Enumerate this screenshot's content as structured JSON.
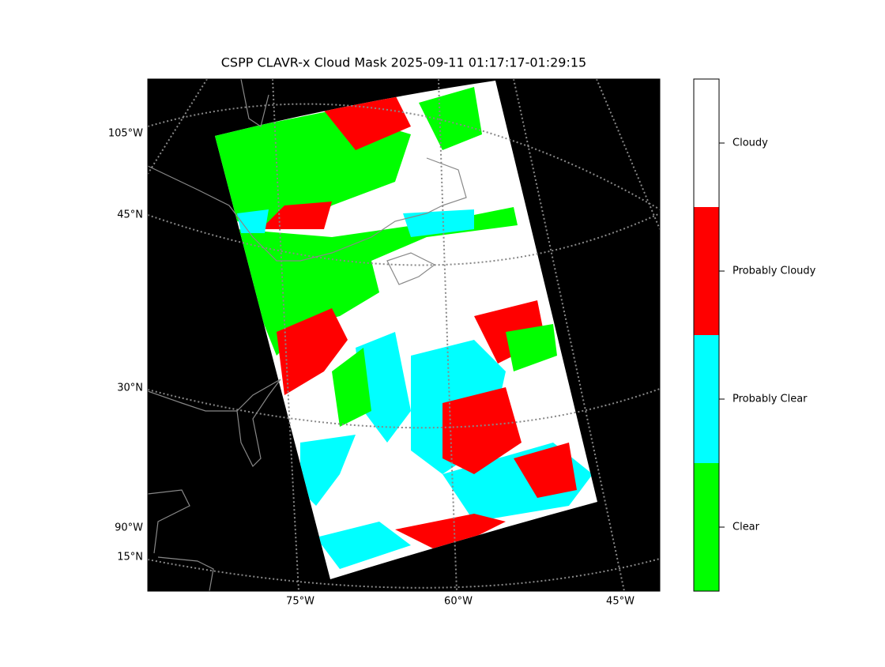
{
  "title": "CSPP CLAVR-x Cloud Mask 2025-09-11 01:17:17-01:29:15",
  "map": {
    "left_labels": [
      "105°W",
      "45°N",
      "30°N",
      "90°W",
      "15°N"
    ],
    "bottom_labels": [
      "75°W",
      "60°W",
      "45°W"
    ],
    "background": "#000000"
  },
  "colorbar": {
    "categories": [
      {
        "label": "Cloudy",
        "color": "#ffffff"
      },
      {
        "label": "Probably Cloudy",
        "color": "#ff0000"
      },
      {
        "label": "Probably Clear",
        "color": "#00ffff"
      },
      {
        "label": "Clear",
        "color": "#00ff00"
      }
    ]
  }
}
